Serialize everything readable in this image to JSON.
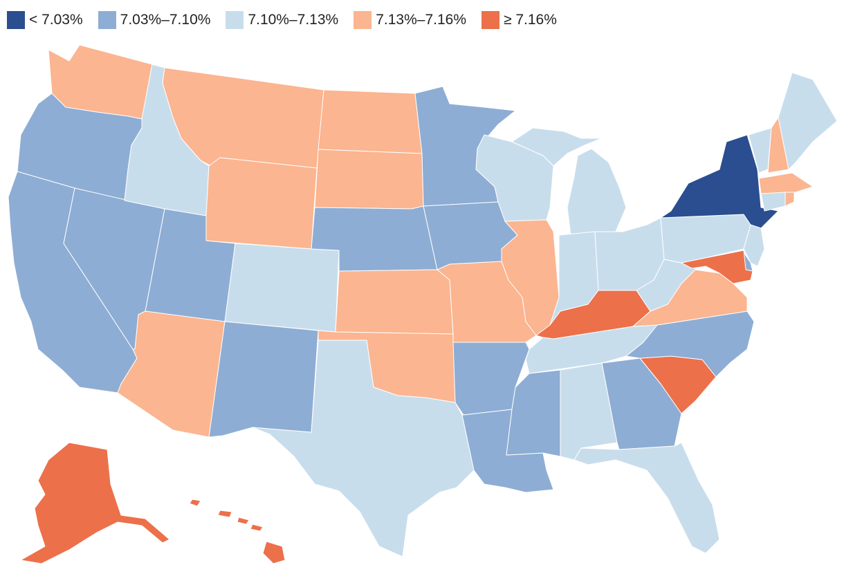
{
  "colors": {
    "lt703": "#2a4e8f",
    "b703_710": "#8eadd4",
    "b710_713": "#c8ddec",
    "b713_716": "#fbb590",
    "ge716": "#ec704a"
  },
  "legend": [
    {
      "key": "lt703",
      "label": "< 7.03%"
    },
    {
      "key": "b703_710",
      "label": "7.03%–7.10%"
    },
    {
      "key": "b710_713",
      "label": "7.10%–7.13%"
    },
    {
      "key": "b713_716",
      "label": "7.13%–7.16%"
    },
    {
      "key": "ge716",
      "label": "≥ 7.16%"
    }
  ],
  "states": {
    "WA": "b713_716",
    "OR": "b703_710",
    "CA": "b703_710",
    "NV": "b703_710",
    "ID": "b710_713",
    "MT": "b713_716",
    "WY": "b713_716",
    "UT": "b703_710",
    "AZ": "b713_716",
    "CO": "b710_713",
    "NM": "b703_710",
    "ND": "b713_716",
    "SD": "b713_716",
    "NE": "b703_710",
    "KS": "b713_716",
    "OK": "b713_716",
    "TX": "b710_713",
    "MN": "b703_710",
    "IA": "b703_710",
    "MO": "b713_716",
    "AR": "b703_710",
    "LA": "b703_710",
    "WI": "b710_713",
    "IL": "b713_716",
    "MI": "b710_713",
    "IN": "b710_713",
    "OH": "b710_713",
    "KY": "ge716",
    "TN": "b710_713",
    "MS": "b703_710",
    "AL": "b710_713",
    "GA": "b703_710",
    "FL": "b710_713",
    "SC": "ge716",
    "NC": "b703_710",
    "VA": "b713_716",
    "WV": "b710_713",
    "PA": "b710_713",
    "NY": "lt703",
    "VT": "b710_713",
    "NH": "b713_716",
    "ME": "b710_713",
    "MA": "b713_716",
    "CT": "b710_713",
    "RI": "b713_716",
    "NJ": "b710_713",
    "DE": "b703_710",
    "MD": "ge716",
    "AK": "ge716",
    "HI": "ge716"
  }
}
